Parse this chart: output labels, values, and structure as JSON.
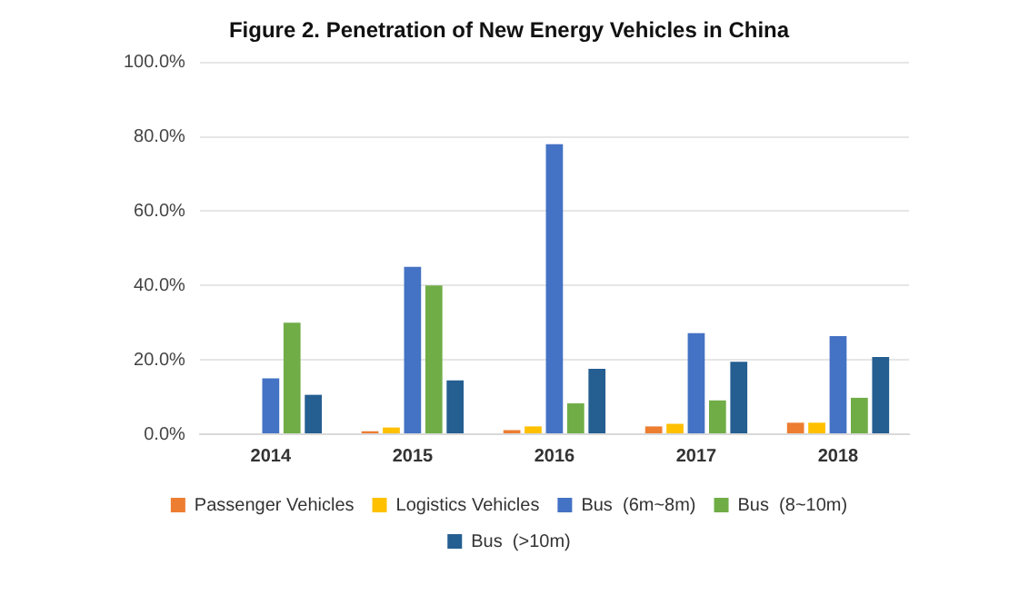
{
  "chart_data": {
    "type": "bar",
    "title": "Figure 2. Penetration of New Energy Vehicles in China",
    "categories": [
      "2014",
      "2015",
      "2016",
      "2017",
      "2018"
    ],
    "series": [
      {
        "name": "Passenger Vehicles",
        "color": "#ed7d31",
        "values": [
          null,
          0.8,
          1.1,
          2.1,
          3.1
        ]
      },
      {
        "name": "Logistics Vehicles",
        "color": "#ffc000",
        "values": [
          null,
          1.8,
          2.1,
          2.8,
          3.1
        ]
      },
      {
        "name": "Bus  (6m~8m)",
        "color": "#4472c4",
        "values": [
          15,
          45,
          78,
          27.2,
          26.4
        ]
      },
      {
        "name": "Bus  (8~10m)",
        "color": "#70ad47",
        "values": [
          30,
          40,
          8.3,
          9.1,
          9.8
        ]
      },
      {
        "name": "Bus  (>10m)",
        "color": "#255e91",
        "values": [
          10.6,
          14.5,
          17.6,
          19.5,
          20.8
        ]
      }
    ],
    "ylim": [
      0,
      100
    ],
    "yticks": [
      {
        "value": 0,
        "label": "0.0%"
      },
      {
        "value": 20,
        "label": "20.0%"
      },
      {
        "value": 40,
        "label": "40.0%"
      },
      {
        "value": 60,
        "label": "60.0%"
      },
      {
        "value": 80,
        "label": "80.0%"
      },
      {
        "value": 100,
        "label": "100.0%"
      }
    ],
    "grid": "y",
    "legend": "bottom"
  }
}
